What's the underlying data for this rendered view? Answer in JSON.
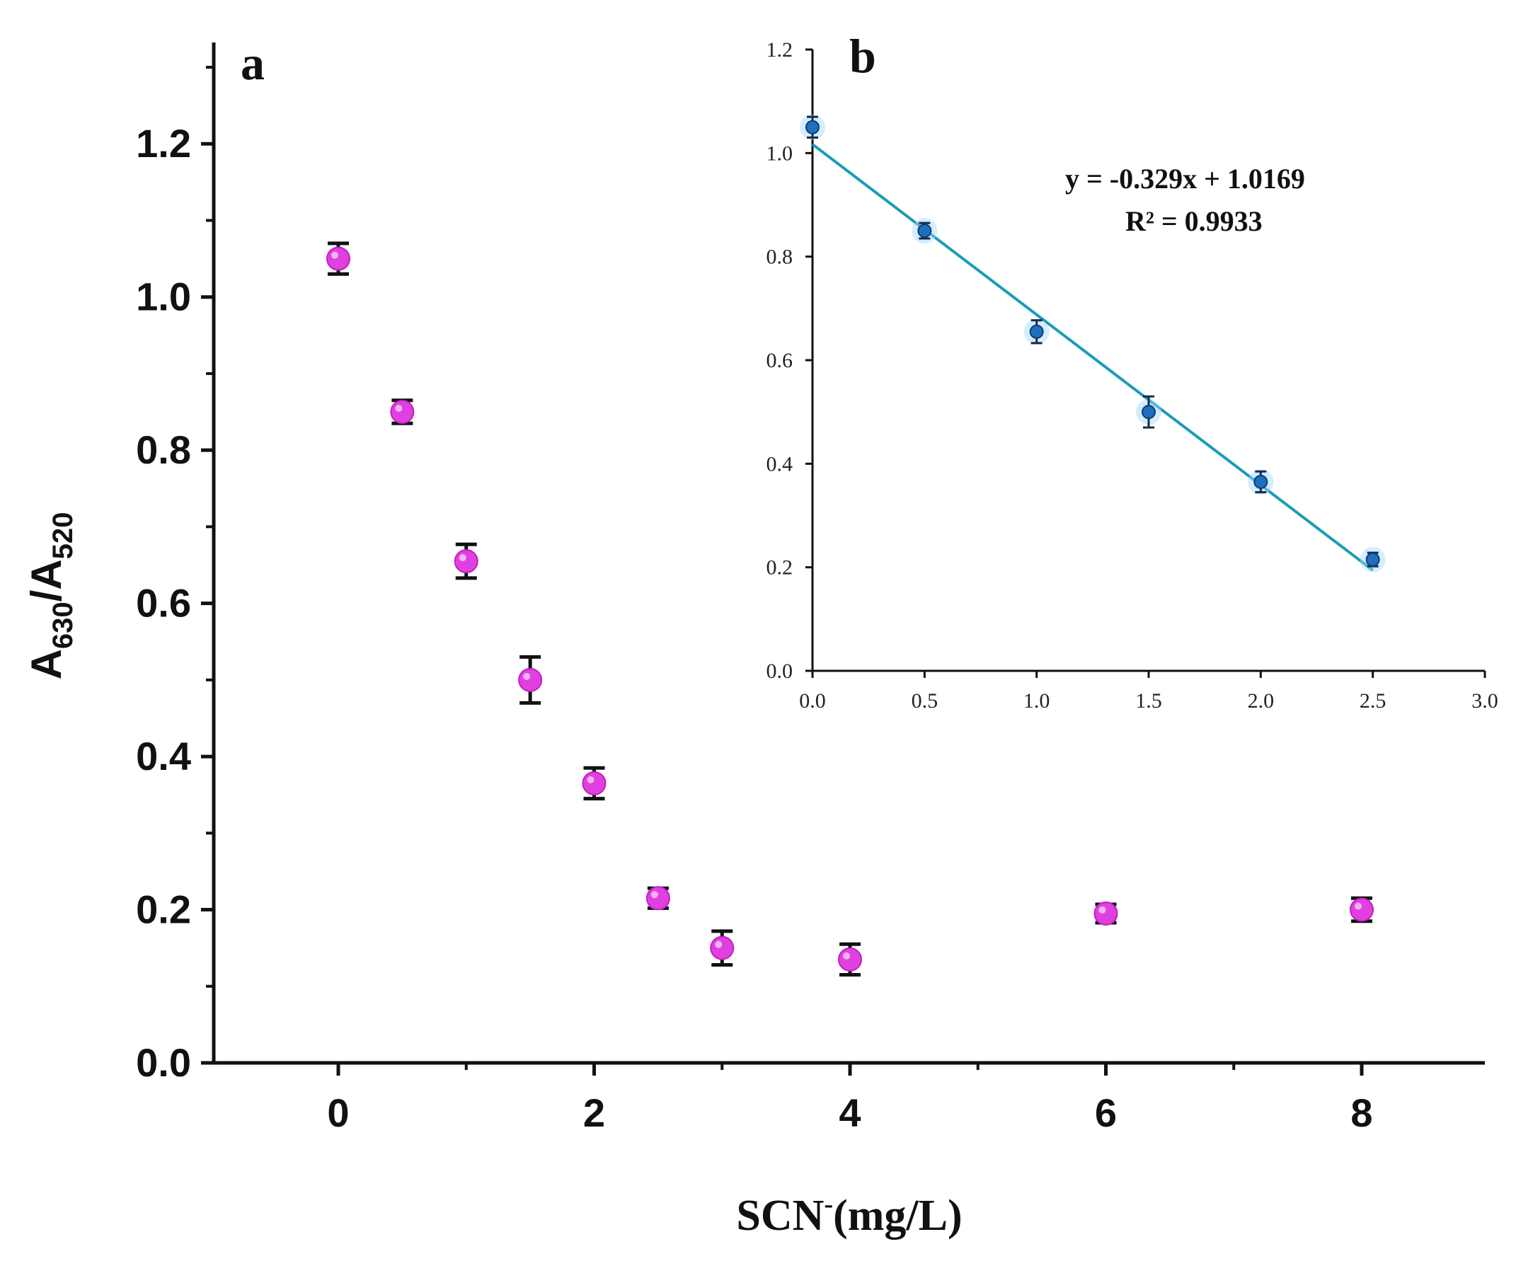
{
  "chart_data": [
    {
      "panel": "a",
      "type": "scatter",
      "title": "",
      "panel_label": "a",
      "xlabel_main": "SCN",
      "xlabel_sup": "-",
      "xlabel_unit": "(mg/L)",
      "ylabel_main": "A",
      "ylabel_sub1": "630",
      "ylabel_slash": "/A",
      "ylabel_sub2": "520",
      "xlim": [
        -1,
        9
      ],
      "ylim": [
        0.0,
        1.3
      ],
      "x_ticks": [
        0,
        2,
        4,
        6,
        8
      ],
      "x_tick_labels": [
        "0",
        "2",
        "4",
        "6",
        "8"
      ],
      "y_ticks": [
        0.0,
        0.2,
        0.4,
        0.6,
        0.8,
        1.0,
        1.2
      ],
      "y_tick_labels": [
        "0.0",
        "0.2",
        "0.4",
        "0.6",
        "0.8",
        "1.0",
        "1.2"
      ],
      "marker_color": "#e040e0",
      "errorbar_color": "#111111",
      "points": [
        {
          "x": 0,
          "y": 1.05,
          "err": 0.02
        },
        {
          "x": 0.5,
          "y": 0.85,
          "err": 0.015
        },
        {
          "x": 1,
          "y": 0.655,
          "err": 0.022
        },
        {
          "x": 1.5,
          "y": 0.5,
          "err": 0.03
        },
        {
          "x": 2,
          "y": 0.365,
          "err": 0.02
        },
        {
          "x": 2.5,
          "y": 0.215,
          "err": 0.013
        },
        {
          "x": 3,
          "y": 0.15,
          "err": 0.022
        },
        {
          "x": 4,
          "y": 0.135,
          "err": 0.02
        },
        {
          "x": 6,
          "y": 0.195,
          "err": 0.012
        },
        {
          "x": 8,
          "y": 0.2,
          "err": 0.015
        }
      ]
    },
    {
      "panel": "b",
      "type": "scatter",
      "title": "",
      "panel_label": "b",
      "xlim": [
        0.0,
        3.0
      ],
      "ylim": [
        0.0,
        1.2
      ],
      "x_ticks": [
        0.0,
        0.5,
        1.0,
        1.5,
        2.0,
        2.5,
        3.0
      ],
      "x_tick_labels": [
        "0.0",
        "0.5",
        "1.0",
        "1.5",
        "2.0",
        "2.5",
        "3.0"
      ],
      "y_ticks": [
        0.0,
        0.2,
        0.4,
        0.6,
        0.8,
        1.0,
        1.2
      ],
      "y_tick_labels": [
        "0.0",
        "0.2",
        "0.4",
        "0.6",
        "0.8",
        "1.0",
        "1.2"
      ],
      "marker_color": "#1e6fc0",
      "line_color": "#1a9cb8",
      "fit": {
        "slope": -0.329,
        "intercept": 1.0169,
        "x_range": [
          0.0,
          2.5
        ]
      },
      "equation": "y = -0.329x + 1.0169",
      "r_squared": "R² = 0.9933",
      "points": [
        {
          "x": 0,
          "y": 1.05,
          "err": 0.02
        },
        {
          "x": 0.5,
          "y": 0.85,
          "err": 0.015
        },
        {
          "x": 1.0,
          "y": 0.655,
          "err": 0.022
        },
        {
          "x": 1.5,
          "y": 0.5,
          "err": 0.03
        },
        {
          "x": 2.0,
          "y": 0.365,
          "err": 0.02
        },
        {
          "x": 2.5,
          "y": 0.215,
          "err": 0.013
        }
      ]
    }
  ]
}
